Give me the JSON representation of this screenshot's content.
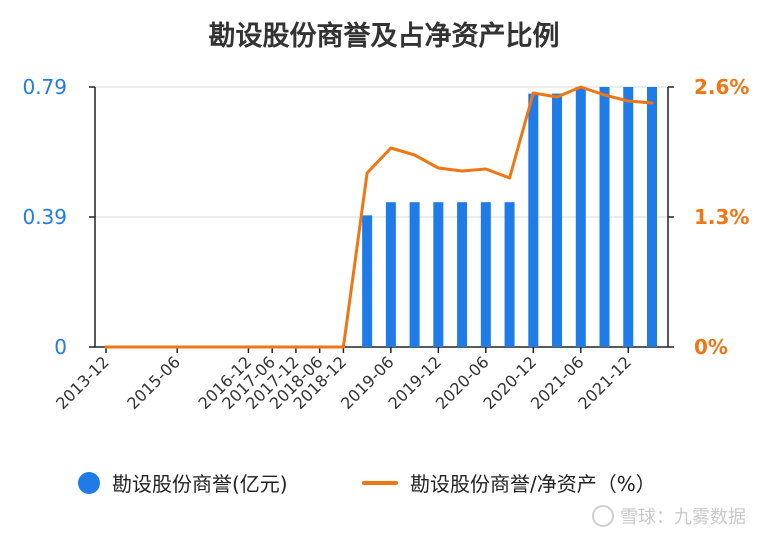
{
  "chart_data": {
    "type": "bar",
    "title": "勘设股份商誉及占净资产比例",
    "categories": [
      "2013-12",
      "2014-06",
      "2014-12",
      "2015-06",
      "2015-12",
      "2016-06",
      "2016-12",
      "2017-06",
      "2017-12",
      "2018-06",
      "2018-12",
      "2019-03",
      "2019-06",
      "2019-09",
      "2019-12",
      "2020-03",
      "2020-06",
      "2020-09",
      "2020-12",
      "2021-03",
      "2021-06",
      "2021-09",
      "2021-12",
      "2022-03"
    ],
    "x_tick_labels": [
      "2013-12",
      "2015-06",
      "2016-12",
      "2017-06",
      "2017-12",
      "2018-06",
      "2018-12",
      "2019-06",
      "2019-12",
      "2020-06",
      "2020-12",
      "2021-06",
      "2021-12"
    ],
    "series": [
      {
        "name": "勘设股份商誉(亿元)",
        "type": "bar",
        "axis": "left",
        "color": "#1e7be8",
        "values": [
          null,
          null,
          null,
          null,
          null,
          null,
          null,
          null,
          null,
          null,
          null,
          0.4,
          0.44,
          0.44,
          0.44,
          0.44,
          0.44,
          0.44,
          0.77,
          0.77,
          0.79,
          0.79,
          0.79,
          0.79
        ]
      },
      {
        "name": "勘设股份商誉/净资产（%）",
        "type": "line",
        "axis": "right",
        "color": "#f07614",
        "values": [
          0,
          0,
          0,
          0,
          0,
          0,
          0,
          0,
          0,
          0,
          0,
          1.74,
          1.99,
          1.92,
          1.79,
          1.76,
          1.78,
          1.69,
          2.54,
          2.5,
          2.6,
          2.52,
          2.46,
          2.44
        ]
      }
    ],
    "y_left": {
      "ticks": [
        "0",
        "0.39",
        "0.79"
      ],
      "ylim": [
        0,
        0.79
      ],
      "color": "#1e7be8"
    },
    "y_right": {
      "ticks": [
        "0%",
        "1.3%",
        "2.6%"
      ],
      "ylim": [
        0,
        2.6
      ],
      "color": "#f07614"
    },
    "grid": true,
    "legend": "bottom"
  },
  "watermark": "雪球：九雾数据"
}
